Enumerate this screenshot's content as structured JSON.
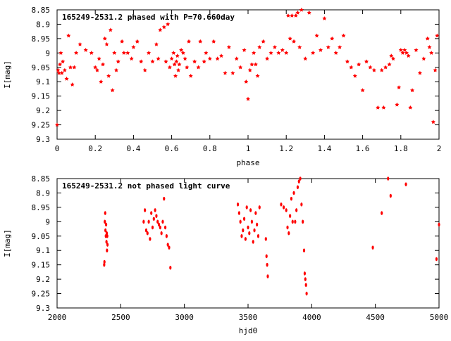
{
  "chart_data": [
    {
      "type": "scatter",
      "title": "165249-2531.2 phased with P=70.660day",
      "xlabel": "phase",
      "ylabel": "I[mag]",
      "xlim": [
        0,
        2
      ],
      "ylim": [
        9.3,
        8.85
      ],
      "y_inverted": true,
      "x_ticks": [
        0,
        0.2,
        0.4,
        0.6,
        0.8,
        1,
        1.2,
        1.4,
        1.6,
        1.8,
        2
      ],
      "x_tick_labels": [
        "0",
        "0.2",
        "0.4",
        "0.6",
        "0.8",
        "1",
        "1.2",
        "1.4",
        "1.6",
        "1.8",
        "2"
      ],
      "y_ticks": [
        8.85,
        8.9,
        8.95,
        9,
        9.05,
        9.1,
        9.15,
        9.2,
        9.25,
        9.3
      ],
      "y_tick_labels": [
        "8.85",
        "8.9",
        "8.95",
        "9",
        "9.05",
        "9.1",
        "9.15",
        "9.2",
        "9.25",
        "9.3"
      ],
      "grid": false,
      "marker_color": "#ff0000",
      "points": [
        [
          0.0,
          9.25
        ],
        [
          0.005,
          9.06
        ],
        [
          0.01,
          9.07
        ],
        [
          0.015,
          9.04
        ],
        [
          0.02,
          9.0
        ],
        [
          0.025,
          9.07
        ],
        [
          0.03,
          9.03
        ],
        [
          0.04,
          9.06
        ],
        [
          0.05,
          9.09
        ],
        [
          0.06,
          8.94
        ],
        [
          0.07,
          9.05
        ],
        [
          0.08,
          9.11
        ],
        [
          0.09,
          9.05
        ],
        [
          0.1,
          9.0
        ],
        [
          0.12,
          8.97
        ],
        [
          0.15,
          8.99
        ],
        [
          0.18,
          9.0
        ],
        [
          0.2,
          9.05
        ],
        [
          0.21,
          9.06
        ],
        [
          0.22,
          9.02
        ],
        [
          0.23,
          9.1
        ],
        [
          0.24,
          9.04
        ],
        [
          0.25,
          8.95
        ],
        [
          0.26,
          8.97
        ],
        [
          0.27,
          9.08
        ],
        [
          0.28,
          8.92
        ],
        [
          0.29,
          9.13
        ],
        [
          0.3,
          9.0
        ],
        [
          0.31,
          9.06
        ],
        [
          0.32,
          9.03
        ],
        [
          0.34,
          8.96
        ],
        [
          0.35,
          9.0
        ],
        [
          0.37,
          9.0
        ],
        [
          0.39,
          9.02
        ],
        [
          0.4,
          8.98
        ],
        [
          0.42,
          8.96
        ],
        [
          0.44,
          9.03
        ],
        [
          0.46,
          9.06
        ],
        [
          0.48,
          9.0
        ],
        [
          0.5,
          9.03
        ],
        [
          0.52,
          8.97
        ],
        [
          0.53,
          9.02
        ],
        [
          0.54,
          8.92
        ],
        [
          0.56,
          8.91
        ],
        [
          0.57,
          9.03
        ],
        [
          0.58,
          8.9
        ],
        [
          0.59,
          9.05
        ],
        [
          0.6,
          9.02
        ],
        [
          0.61,
          9.0
        ],
        [
          0.615,
          9.04
        ],
        [
          0.62,
          9.08
        ],
        [
          0.625,
          9.03
        ],
        [
          0.63,
          9.01
        ],
        [
          0.635,
          9.06
        ],
        [
          0.64,
          9.04
        ],
        [
          0.65,
          8.99
        ],
        [
          0.66,
          9.0
        ],
        [
          0.67,
          9.02
        ],
        [
          0.68,
          9.05
        ],
        [
          0.69,
          8.96
        ],
        [
          0.7,
          9.08
        ],
        [
          0.72,
          9.03
        ],
        [
          0.74,
          9.05
        ],
        [
          0.75,
          8.96
        ],
        [
          0.77,
          9.03
        ],
        [
          0.78,
          9.0
        ],
        [
          0.8,
          9.02
        ],
        [
          0.82,
          8.96
        ],
        [
          0.84,
          9.02
        ],
        [
          0.86,
          9.01
        ],
        [
          0.88,
          9.07
        ],
        [
          0.9,
          8.98
        ],
        [
          0.92,
          9.07
        ],
        [
          0.94,
          9.02
        ],
        [
          0.96,
          9.05
        ],
        [
          0.98,
          8.99
        ],
        [
          0.99,
          9.1
        ],
        [
          1.0,
          9.16
        ],
        [
          1.01,
          9.06
        ],
        [
          1.02,
          9.04
        ],
        [
          1.03,
          9.0
        ],
        [
          1.04,
          9.04
        ],
        [
          1.05,
          9.08
        ],
        [
          1.06,
          8.98
        ],
        [
          1.08,
          8.96
        ],
        [
          1.1,
          9.02
        ],
        [
          1.12,
          9.0
        ],
        [
          1.14,
          8.98
        ],
        [
          1.16,
          9.0
        ],
        [
          1.18,
          8.99
        ],
        [
          1.2,
          9.0
        ],
        [
          1.21,
          8.87
        ],
        [
          1.22,
          8.95
        ],
        [
          1.23,
          8.87
        ],
        [
          1.24,
          8.96
        ],
        [
          1.25,
          8.87
        ],
        [
          1.26,
          8.86
        ],
        [
          1.27,
          8.98
        ],
        [
          1.28,
          8.85
        ],
        [
          1.3,
          9.02
        ],
        [
          1.32,
          8.86
        ],
        [
          1.34,
          9.0
        ],
        [
          1.36,
          8.94
        ],
        [
          1.38,
          8.99
        ],
        [
          1.4,
          8.88
        ],
        [
          1.42,
          8.98
        ],
        [
          1.44,
          8.95
        ],
        [
          1.46,
          9.0
        ],
        [
          1.48,
          8.98
        ],
        [
          1.5,
          8.94
        ],
        [
          1.52,
          9.03
        ],
        [
          1.54,
          9.05
        ],
        [
          1.56,
          9.08
        ],
        [
          1.58,
          9.04
        ],
        [
          1.6,
          9.13
        ],
        [
          1.62,
          9.03
        ],
        [
          1.64,
          9.05
        ],
        [
          1.66,
          9.06
        ],
        [
          1.68,
          9.19
        ],
        [
          1.7,
          9.06
        ],
        [
          1.71,
          9.19
        ],
        [
          1.72,
          9.05
        ],
        [
          1.74,
          9.04
        ],
        [
          1.75,
          9.01
        ],
        [
          1.76,
          9.02
        ],
        [
          1.78,
          9.18
        ],
        [
          1.79,
          9.12
        ],
        [
          1.8,
          8.99
        ],
        [
          1.81,
          9.0
        ],
        [
          1.82,
          8.99
        ],
        [
          1.83,
          9.0
        ],
        [
          1.84,
          9.01
        ],
        [
          1.85,
          9.19
        ],
        [
          1.86,
          9.13
        ],
        [
          1.88,
          8.99
        ],
        [
          1.9,
          9.07
        ],
        [
          1.92,
          9.02
        ],
        [
          1.94,
          8.95
        ],
        [
          1.95,
          8.98
        ],
        [
          1.96,
          9.0
        ],
        [
          1.97,
          9.24
        ],
        [
          1.98,
          9.06
        ],
        [
          1.99,
          8.94
        ]
      ]
    },
    {
      "type": "scatter",
      "title": "165249-2531.2 not phased light curve",
      "xlabel": "hjd0",
      "ylabel": "I[mag]",
      "xlim": [
        2000,
        5000
      ],
      "ylim": [
        9.3,
        8.85
      ],
      "y_inverted": true,
      "x_ticks": [
        2000,
        2500,
        3000,
        3500,
        4000,
        4500,
        5000
      ],
      "x_tick_labels": [
        "2000",
        "2500",
        "3000",
        "3500",
        "4000",
        "4500",
        "5000"
      ],
      "y_ticks": [
        8.85,
        8.9,
        8.95,
        9,
        9.05,
        9.1,
        9.15,
        9.2,
        9.25,
        9.3
      ],
      "y_tick_labels": [
        "8.85",
        "8.9",
        "8.95",
        "9",
        "9.05",
        "9.1",
        "9.15",
        "9.2",
        "9.25",
        "9.3"
      ],
      "grid": false,
      "marker_color": "#ff0000",
      "points": [
        [
          2370,
          9.15
        ],
        [
          2372,
          9.14
        ],
        [
          2375,
          9.0
        ],
        [
          2378,
          8.97
        ],
        [
          2380,
          9.03
        ],
        [
          2383,
          9.05
        ],
        [
          2385,
          9.01
        ],
        [
          2388,
          9.07
        ],
        [
          2390,
          9.04
        ],
        [
          2392,
          9.1
        ],
        [
          2394,
          9.05
        ],
        [
          2396,
          9.08
        ],
        [
          2680,
          9.0
        ],
        [
          2690,
          8.96
        ],
        [
          2700,
          9.03
        ],
        [
          2710,
          9.04
        ],
        [
          2720,
          9.0
        ],
        [
          2730,
          9.06
        ],
        [
          2740,
          8.97
        ],
        [
          2750,
          9.02
        ],
        [
          2760,
          8.99
        ],
        [
          2770,
          8.96
        ],
        [
          2780,
          8.98
        ],
        [
          2790,
          9.0
        ],
        [
          2800,
          9.01
        ],
        [
          2810,
          9.02
        ],
        [
          2820,
          9.04
        ],
        [
          2830,
          9.0
        ],
        [
          2840,
          8.92
        ],
        [
          2850,
          9.02
        ],
        [
          2860,
          9.05
        ],
        [
          2870,
          9.08
        ],
        [
          2880,
          9.09
        ],
        [
          2890,
          9.16
        ],
        [
          3420,
          8.94
        ],
        [
          3430,
          8.97
        ],
        [
          3440,
          9.0
        ],
        [
          3450,
          9.05
        ],
        [
          3460,
          9.03
        ],
        [
          3470,
          8.99
        ],
        [
          3480,
          9.06
        ],
        [
          3490,
          8.95
        ],
        [
          3500,
          9.02
        ],
        [
          3510,
          9.04
        ],
        [
          3520,
          8.96
        ],
        [
          3530,
          9.0
        ],
        [
          3540,
          9.07
        ],
        [
          3550,
          9.03
        ],
        [
          3560,
          8.97
        ],
        [
          3570,
          9.01
        ],
        [
          3580,
          9.05
        ],
        [
          3590,
          8.95
        ],
        [
          3640,
          9.06
        ],
        [
          3645,
          9.12
        ],
        [
          3650,
          9.15
        ],
        [
          3655,
          9.19
        ],
        [
          3760,
          8.94
        ],
        [
          3780,
          8.95
        ],
        [
          3800,
          8.96
        ],
        [
          3810,
          9.02
        ],
        [
          3820,
          9.04
        ],
        [
          3830,
          8.98
        ],
        [
          3840,
          8.92
        ],
        [
          3850,
          9.0
        ],
        [
          3860,
          8.9
        ],
        [
          3870,
          9.0
        ],
        [
          3880,
          8.96
        ],
        [
          3890,
          8.88
        ],
        [
          3900,
          8.86
        ],
        [
          3910,
          8.85
        ],
        [
          3920,
          8.94
        ],
        [
          3930,
          9.0
        ],
        [
          3940,
          9.1
        ],
        [
          3945,
          9.18
        ],
        [
          3950,
          9.2
        ],
        [
          3955,
          9.22
        ],
        [
          3960,
          9.25
        ],
        [
          4480,
          9.09
        ],
        [
          4550,
          8.97
        ],
        [
          4600,
          8.85
        ],
        [
          4620,
          8.91
        ],
        [
          4740,
          8.87
        ],
        [
          4980,
          9.13
        ],
        [
          5000,
          9.01
        ]
      ]
    }
  ]
}
